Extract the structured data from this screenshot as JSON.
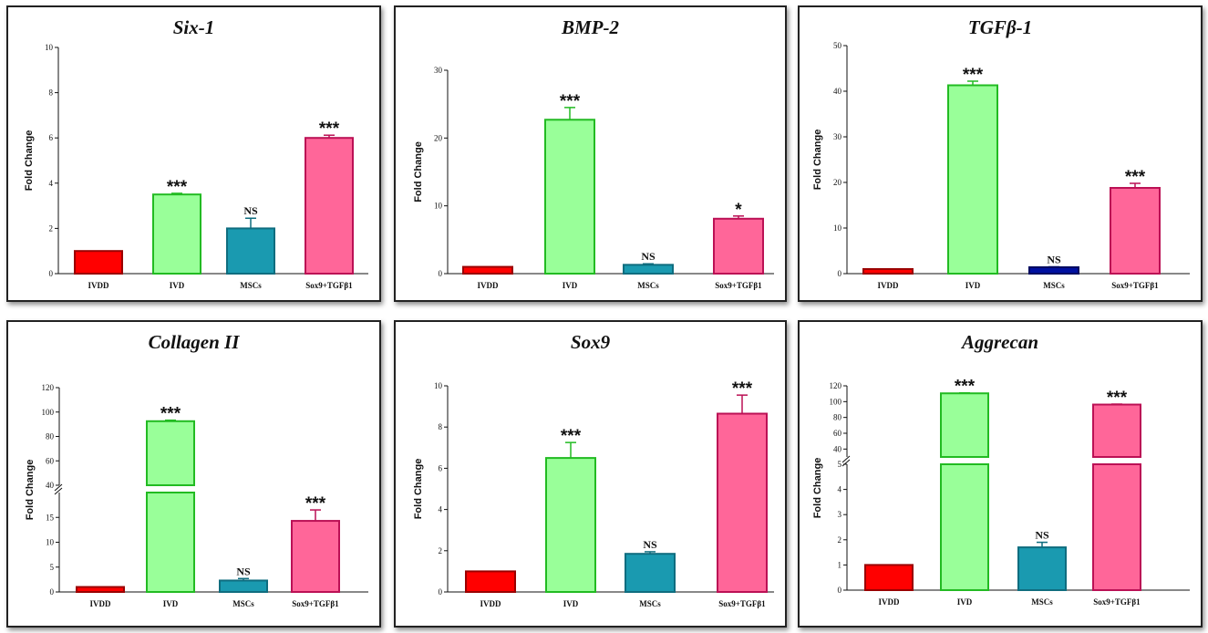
{
  "chart_data": [
    {
      "type": "bar",
      "title": "Six-1",
      "xlabel": "",
      "ylabel": "Fold Change",
      "categories": [
        "IVDD",
        "IVD",
        "MSCs",
        "Sox9+TGFβ1"
      ],
      "values": [
        1,
        3.5,
        2,
        6
      ],
      "errors": [
        0,
        0.05,
        0.45,
        0.12
      ],
      "significance": [
        "",
        "***",
        "NS",
        "***"
      ],
      "ylim": [
        0,
        10
      ],
      "yticks": [
        0,
        2,
        4,
        6,
        8,
        10
      ],
      "colors": [
        "#ff0000",
        "#99ff99",
        "#1a9ab0",
        "#ff6699"
      ],
      "edge_colors": [
        "#9a0000",
        "#22bb22",
        "#0f6d7f",
        "#bb1155"
      ]
    },
    {
      "type": "bar",
      "title": "BMP-2",
      "xlabel": "",
      "ylabel": "Fold Change",
      "categories": [
        "IVDD",
        "IVD",
        "MSCs",
        "Sox9+TGFβ1"
      ],
      "values": [
        1,
        22.7,
        1.3,
        8.1
      ],
      "errors": [
        0,
        1.8,
        0.15,
        0.4
      ],
      "significance": [
        "",
        "***",
        "NS",
        "*"
      ],
      "ylim": [
        0,
        30
      ],
      "yticks": [
        0,
        10,
        20,
        30
      ],
      "colors": [
        "#ff0000",
        "#99ff99",
        "#1a9ab0",
        "#ff6699"
      ],
      "edge_colors": [
        "#9a0000",
        "#22bb22",
        "#0f6d7f",
        "#bb1155"
      ]
    },
    {
      "type": "bar",
      "title": "TGFβ-1",
      "xlabel": "",
      "ylabel": "Fold Change",
      "categories": [
        "IVDD",
        "IVD",
        "MSCs",
        "Sox9+TGFβ1"
      ],
      "values": [
        1,
        41.3,
        1.4,
        18.8
      ],
      "errors": [
        0,
        0.9,
        0.1,
        1
      ],
      "significance": [
        "",
        "***",
        "NS",
        "***"
      ],
      "ylim": [
        0,
        50
      ],
      "yticks": [
        0,
        10,
        20,
        30,
        40,
        50
      ],
      "colors": [
        "#ff0000",
        "#99ff99",
        "#0010a0",
        "#ff6699"
      ],
      "edge_colors": [
        "#9a0000",
        "#22bb22",
        "#000a60",
        "#bb1155"
      ]
    },
    {
      "type": "bar",
      "title": "Collagen II",
      "xlabel": "",
      "ylabel": "Fold Change",
      "categories": [
        "IVDD",
        "IVD",
        "MSCs",
        "Sox9+TGFβ1"
      ],
      "values": [
        1,
        92.5,
        2.3,
        14.3
      ],
      "errors": [
        0,
        0.8,
        0.4,
        2.2
      ],
      "significance": [
        "",
        "***",
        "NS",
        "***"
      ],
      "axis_break": {
        "lower_range": [
          0,
          20
        ],
        "upper_range": [
          40,
          120
        ]
      },
      "yticks_lower": [
        0,
        5,
        10,
        15
      ],
      "yticks_upper": [
        40,
        60,
        80,
        100,
        120
      ],
      "colors": [
        "#ff0000",
        "#99ff99",
        "#1a9ab0",
        "#ff6699"
      ],
      "edge_colors": [
        "#9a0000",
        "#22bb22",
        "#0f6d7f",
        "#bb1155"
      ]
    },
    {
      "type": "bar",
      "title": "Sox9",
      "xlabel": "",
      "ylabel": "Fold Change",
      "categories": [
        "IVDD",
        "IVD",
        "MSCs",
        "Sox9+TGFβ1"
      ],
      "values": [
        1,
        6.5,
        1.85,
        8.65
      ],
      "errors": [
        0,
        0.75,
        0.1,
        0.9
      ],
      "significance": [
        "",
        "***",
        "NS",
        "***"
      ],
      "ylim": [
        0,
        10
      ],
      "yticks": [
        0,
        2,
        4,
        6,
        8,
        10
      ],
      "colors": [
        "#ff0000",
        "#99ff99",
        "#1a9ab0",
        "#ff6699"
      ],
      "edge_colors": [
        "#9a0000",
        "#22bb22",
        "#0f6d7f",
        "#bb1155"
      ]
    },
    {
      "type": "bar",
      "title": "Aggrecan",
      "xlabel": "",
      "ylabel": "Fold Change",
      "categories": [
        "IVDD",
        "IVD",
        "MSCs",
        "Sox9+TGFβ1"
      ],
      "values": [
        1,
        110.5,
        1.7,
        96.3
      ],
      "errors": [
        0,
        0.6,
        0.2,
        0.6
      ],
      "significance": [
        "",
        "***",
        "NS",
        "***"
      ],
      "axis_break": {
        "lower_range": [
          0,
          5
        ],
        "upper_range": [
          30,
          120
        ]
      },
      "yticks_lower": [
        0,
        1,
        2,
        3,
        4,
        5
      ],
      "yticks_upper": [
        40,
        60,
        80,
        100,
        120
      ],
      "colors": [
        "#ff0000",
        "#99ff99",
        "#1a9ab0",
        "#ff6699"
      ],
      "edge_colors": [
        "#9a0000",
        "#22bb22",
        "#0f6d7f",
        "#bb1155"
      ]
    }
  ]
}
